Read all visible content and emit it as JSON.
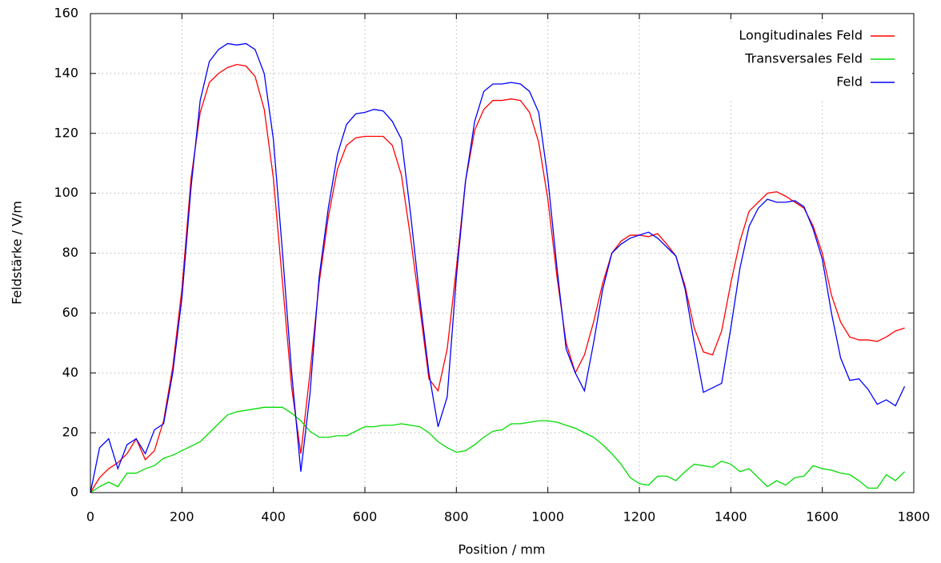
{
  "chart_data": {
    "type": "line",
    "x_label": "Position / mm",
    "y_label": "Feldstärke / V/m",
    "x": [
      0,
      20,
      40,
      60,
      80,
      100,
      120,
      140,
      160,
      180,
      200,
      220,
      240,
      260,
      280,
      300,
      320,
      340,
      360,
      380,
      400,
      420,
      440,
      460,
      480,
      500,
      520,
      540,
      560,
      580,
      600,
      620,
      640,
      660,
      680,
      700,
      720,
      740,
      760,
      780,
      800,
      820,
      840,
      860,
      880,
      900,
      920,
      940,
      960,
      980,
      1000,
      1020,
      1040,
      1060,
      1080,
      1100,
      1120,
      1140,
      1160,
      1180,
      1200,
      1220,
      1240,
      1260,
      1280,
      1300,
      1320,
      1340,
      1360,
      1380,
      1400,
      1420,
      1440,
      1460,
      1480,
      1500,
      1520,
      1540,
      1560,
      1580,
      1600,
      1620,
      1640,
      1660,
      1680,
      1700,
      1720,
      1740,
      1760,
      1780
    ],
    "series": [
      {
        "name": "Longitudinales Feld",
        "color": "#ff0000",
        "values": [
          0,
          5,
          8,
          10,
          13,
          18,
          11,
          14,
          24,
          42,
          68,
          105,
          127,
          137,
          140,
          142,
          143,
          142.5,
          139,
          128,
          105,
          70,
          35,
          13,
          40,
          70,
          92,
          108,
          116,
          118.5,
          119,
          119,
          119,
          116,
          106,
          85,
          62,
          38,
          34,
          48,
          75,
          104,
          121,
          128,
          131,
          131,
          131.5,
          131,
          127,
          117,
          98,
          72,
          50,
          40,
          46,
          57,
          70,
          80,
          84,
          86,
          86,
          85.5,
          86.5,
          83,
          79,
          69,
          55,
          47,
          46,
          54,
          70,
          84,
          94,
          97,
          100,
          100.5,
          99,
          97,
          95,
          89,
          80,
          66,
          57,
          52,
          51,
          51,
          50.5,
          52,
          54,
          55
        ]
      },
      {
        "name": "Transversales Feld",
        "color": "#00dd00",
        "values": [
          0,
          2,
          3.5,
          2,
          6.5,
          6.5,
          8,
          9,
          11.5,
          12.5,
          14,
          15.5,
          17,
          20,
          23,
          26,
          27,
          27.5,
          28,
          28.5,
          28.5,
          28.5,
          26.5,
          24,
          20.5,
          18.5,
          18.5,
          19,
          19,
          20.5,
          22,
          22,
          22.5,
          22.5,
          23,
          22.5,
          22,
          20,
          17,
          15,
          13.5,
          14,
          16,
          18.5,
          20.5,
          21,
          23,
          23,
          23.5,
          24,
          24,
          23.5,
          22.5,
          21.5,
          20,
          18.5,
          16,
          13,
          9.5,
          5,
          3,
          2.5,
          5.5,
          5.5,
          4,
          7,
          9.5,
          9,
          8.5,
          10.5,
          9.5,
          7,
          8,
          5,
          2,
          4,
          2.5,
          5,
          5.5,
          9,
          8,
          7.5,
          6.5,
          6,
          4,
          1.5,
          1.5,
          6,
          4,
          7
        ]
      },
      {
        "name": "Feld",
        "color": "#0000ff",
        "values": [
          0,
          15,
          18,
          8,
          16,
          18,
          13,
          21,
          23,
          40,
          65,
          102,
          131,
          144,
          148,
          150,
          149.5,
          150,
          148,
          140,
          118,
          80,
          40,
          7,
          33,
          72,
          95,
          113,
          123,
          126.5,
          127,
          128,
          127.5,
          124,
          118,
          93,
          65,
          40,
          22,
          32,
          72,
          104,
          124,
          134,
          136.5,
          136.5,
          137,
          136.5,
          134,
          127,
          105,
          75,
          48,
          40,
          34,
          50,
          68,
          80,
          83,
          85,
          86,
          87,
          85,
          82,
          79,
          68,
          50,
          33.5,
          35,
          36.5,
          55,
          75,
          89,
          95,
          98,
          97,
          97,
          97.5,
          95.5,
          88,
          78,
          60,
          45,
          37.5,
          38,
          34.5,
          29.5,
          31,
          29,
          35.5
        ]
      }
    ],
    "xlim": [
      0,
      1800
    ],
    "xticks": [
      0,
      200,
      400,
      600,
      800,
      1000,
      1200,
      1400,
      1600,
      1800
    ],
    "ylim": [
      0,
      160
    ],
    "yticks": [
      0,
      20,
      40,
      60,
      80,
      100,
      120,
      140,
      160
    ],
    "grid": true,
    "legend": "top-right"
  }
}
